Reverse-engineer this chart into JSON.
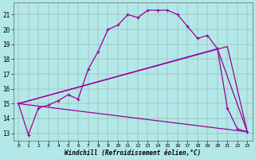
{
  "background_color": "#b3e8e8",
  "line_color": "#990099",
  "xlim": [
    -0.5,
    23.5
  ],
  "ylim": [
    12.5,
    21.8
  ],
  "xticks": [
    0,
    1,
    2,
    3,
    4,
    5,
    6,
    7,
    8,
    9,
    10,
    11,
    12,
    13,
    14,
    15,
    16,
    17,
    18,
    19,
    20,
    21,
    22,
    23
  ],
  "yticks": [
    13,
    14,
    15,
    16,
    17,
    18,
    19,
    20,
    21
  ],
  "xlabel": "Windchill (Refroidissement éolien,°C)",
  "curve": {
    "x": [
      0,
      1,
      2,
      3,
      4,
      5,
      6,
      7,
      8,
      9,
      10,
      11,
      12,
      13,
      14,
      15,
      16,
      17,
      18,
      19,
      20,
      21,
      22,
      23
    ],
    "y": [
      15.0,
      12.9,
      14.7,
      14.9,
      15.2,
      15.6,
      15.3,
      17.3,
      18.5,
      20.0,
      20.3,
      21.0,
      20.8,
      21.3,
      21.3,
      21.3,
      21.0,
      20.2,
      19.4,
      19.6,
      18.7,
      14.7,
      13.3,
      13.1
    ]
  },
  "line_bottom": {
    "x": [
      0,
      23
    ],
    "y": [
      15.0,
      13.1
    ]
  },
  "line_mid": {
    "x": [
      0,
      20,
      23
    ],
    "y": [
      15.0,
      18.7,
      13.1
    ]
  },
  "line_top": {
    "x": [
      0,
      21,
      23
    ],
    "y": [
      15.0,
      18.85,
      13.1
    ]
  },
  "linewidth": 0.9,
  "markersize": 3.5
}
